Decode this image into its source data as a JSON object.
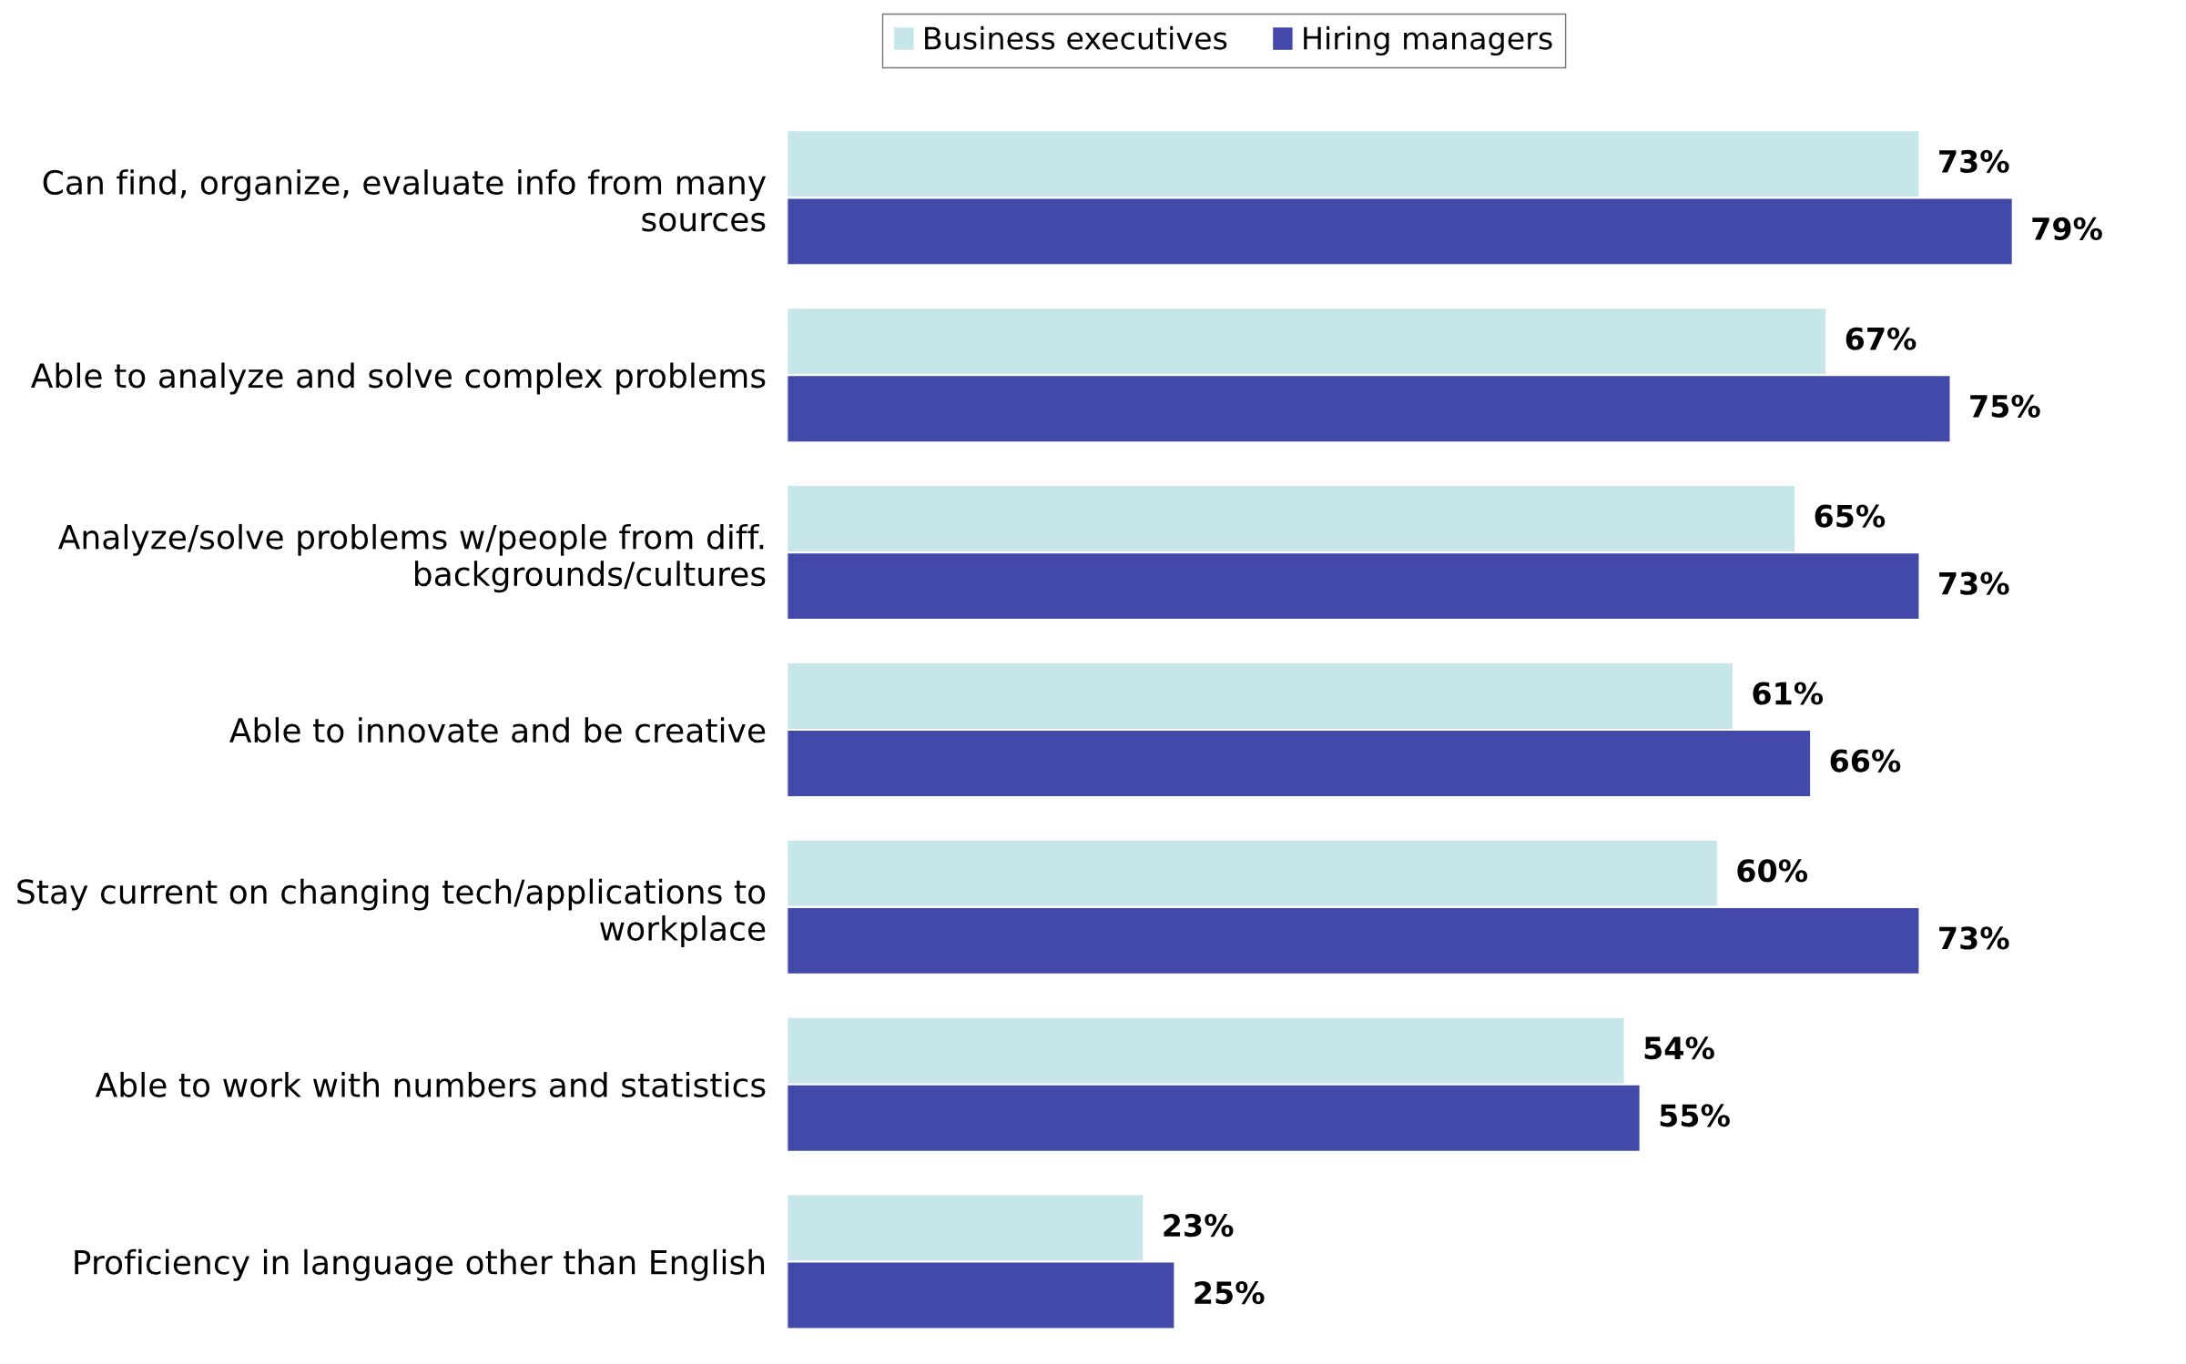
{
  "chart_data": {
    "type": "bar",
    "orientation": "horizontal",
    "legend": "top",
    "grid": false,
    "tick_labels": "y",
    "categories": [
      "Can find, organize, evaluate info from many\nsources",
      "Able to analyze and solve complex problems",
      "Analyze/solve problems w/people from diff.\nbackgrounds/cultures",
      "Able to innovate and be creative",
      "Stay current on changing tech/applications to\nworkplace",
      "Able to work with numbers and statistics",
      "Proficiency in language other than English"
    ],
    "series": [
      {
        "name": "Business executives",
        "color": "#c6e6e9",
        "values": [
          73,
          67,
          65,
          61,
          60,
          54,
          23
        ],
        "value_labels": [
          "73%",
          "67%",
          "65%",
          "61%",
          "60%",
          "54%",
          "23%"
        ]
      },
      {
        "name": "Hiring managers",
        "color": "#4349a8",
        "values": [
          79,
          75,
          73,
          66,
          73,
          55,
          25
        ],
        "value_labels": [
          "79%",
          "75%",
          "73%",
          "66%",
          "73%",
          "55%",
          "25%"
        ]
      }
    ]
  }
}
